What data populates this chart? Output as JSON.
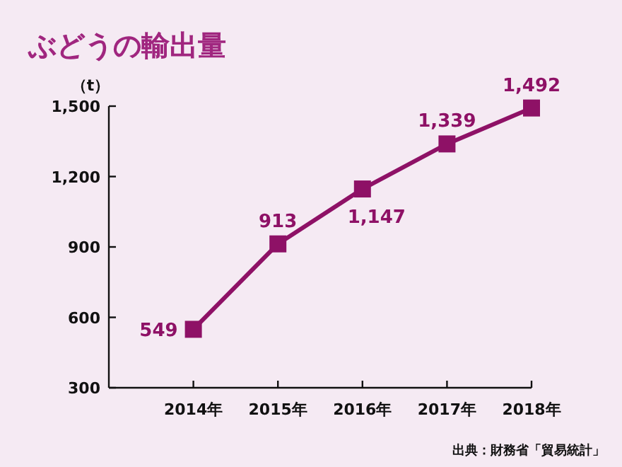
{
  "chart_data": {
    "type": "line",
    "title": "ぶどうの輸出量",
    "ylabel": "（t）",
    "categories": [
      "2014年",
      "2015年",
      "2016年",
      "2017年",
      "2018年"
    ],
    "series": [
      {
        "color": "#8e1166",
        "values": [
          549,
          913,
          1147,
          1339,
          1492
        ],
        "value_labels": [
          "549",
          "913",
          "1,147",
          "1,339",
          "1,492"
        ]
      }
    ],
    "ylim": [
      300,
      1500
    ],
    "yticks": [
      300,
      600,
      900,
      {
        "value": 1200,
        "label": "1,200"
      },
      {
        "value": 1500,
        "label": "1,500"
      }
    ],
    "marker": "square",
    "line_style": "solid",
    "grid": false,
    "annotations": [
      "出典：財務省「貿易統計」"
    ]
  }
}
